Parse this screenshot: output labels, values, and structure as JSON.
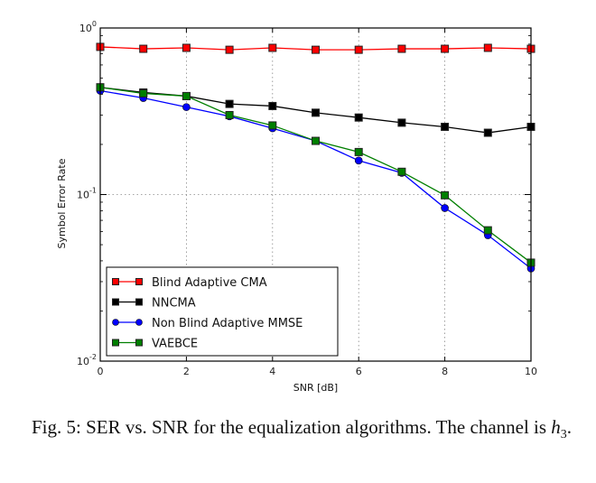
{
  "chart_data": {
    "type": "line",
    "title": "",
    "xlabel": "SNR [dB]",
    "ylabel": "Symbol Error Rate",
    "xscale": "linear",
    "yscale": "log",
    "xlim": [
      0,
      10
    ],
    "ylim": [
      0.01,
      1
    ],
    "xticks": [
      0,
      2,
      4,
      6,
      8,
      10
    ],
    "xtick_labels": [
      "0",
      "2",
      "4",
      "6",
      "8",
      "10"
    ],
    "yticks": [
      0.01,
      0.1,
      1
    ],
    "ytick_labels": [
      {
        "base": "10",
        "exp": "-2"
      },
      {
        "base": "10",
        "exp": "-1"
      },
      {
        "base": "10",
        "exp": "0"
      }
    ],
    "grid": true,
    "legend_position": "lower-left",
    "x": [
      0,
      1,
      2,
      3,
      4,
      5,
      6,
      7,
      8,
      9,
      10
    ],
    "series": [
      {
        "name": "Blind Adaptive CMA",
        "color": "#ff0000",
        "marker": "square",
        "values": [
          0.77,
          0.75,
          0.76,
          0.74,
          0.76,
          0.74,
          0.74,
          0.75,
          0.75,
          0.76,
          0.75
        ]
      },
      {
        "name": "NNCMA",
        "color": "#000000",
        "marker": "square",
        "values": [
          0.44,
          0.41,
          0.39,
          0.35,
          0.34,
          0.31,
          0.29,
          0.27,
          0.255,
          0.235,
          0.255
        ]
      },
      {
        "name": "Non Blind Adaptive MMSE",
        "color": "#0000ff",
        "marker": "circle",
        "values": [
          0.42,
          0.38,
          0.335,
          0.295,
          0.25,
          0.21,
          0.16,
          0.135,
          0.083,
          0.057,
          0.036
        ]
      },
      {
        "name": "VAEBCE",
        "color": "#007f00",
        "marker": "square",
        "values": [
          0.44,
          0.405,
          0.39,
          0.3,
          0.26,
          0.21,
          0.18,
          0.137,
          0.099,
          0.061,
          0.039
        ]
      }
    ]
  },
  "caption": {
    "prefix": "Fig. 5: SER vs. SNR for the equalization algorithms. The channel is ",
    "math_var": "h",
    "math_sub": "3",
    "suffix": "."
  }
}
